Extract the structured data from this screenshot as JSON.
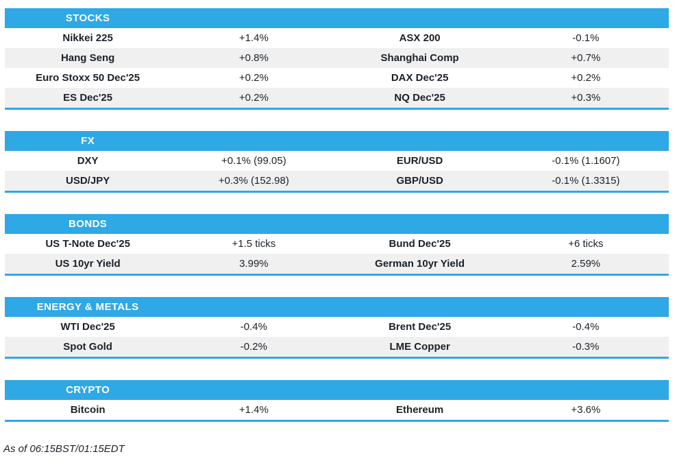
{
  "style": {
    "accent_blue": "#2fa8e6",
    "stripe_gray": "#f0f0f1",
    "text_dark": "#1b2127",
    "header_text": "#ffffff"
  },
  "footer": {
    "as_of": "As of 06:15BST/01:15EDT"
  },
  "chart_data": [
    {
      "type": "table",
      "title": "STOCKS",
      "rows": [
        [
          "Nikkei 225",
          "+1.4%",
          "ASX 200",
          "-0.1%"
        ],
        [
          "Hang Seng",
          "+0.8%",
          "Shanghai Comp",
          "+0.7%"
        ],
        [
          "Euro Stoxx 50 Dec'25",
          "+0.2%",
          "DAX Dec'25",
          "+0.2%"
        ],
        [
          "ES Dec'25",
          "+0.2%",
          "NQ Dec'25",
          "+0.3%"
        ]
      ]
    },
    {
      "type": "table",
      "title": "FX",
      "rows": [
        [
          "DXY",
          "+0.1% (99.05)",
          "EUR/USD",
          "-0.1% (1.1607)"
        ],
        [
          "USD/JPY",
          "+0.3% (152.98)",
          "GBP/USD",
          "-0.1% (1.3315)"
        ]
      ]
    },
    {
      "type": "table",
      "title": "BONDS",
      "rows": [
        [
          "US T-Note Dec'25",
          "+1.5 ticks",
          "Bund Dec'25",
          "+6 ticks"
        ],
        [
          "US 10yr Yield",
          "3.99%",
          "German 10yr Yield",
          "2.59%"
        ]
      ]
    },
    {
      "type": "table",
      "title": "ENERGY & METALS",
      "rows": [
        [
          "WTI Dec'25",
          "-0.4%",
          "Brent Dec'25",
          "-0.4%"
        ],
        [
          "Spot Gold",
          "-0.2%",
          "LME Copper",
          "-0.3%"
        ]
      ]
    },
    {
      "type": "table",
      "title": "CRYPTO",
      "rows": [
        [
          "Bitcoin",
          "+1.4%",
          "Ethereum",
          "+3.6%"
        ]
      ]
    }
  ]
}
